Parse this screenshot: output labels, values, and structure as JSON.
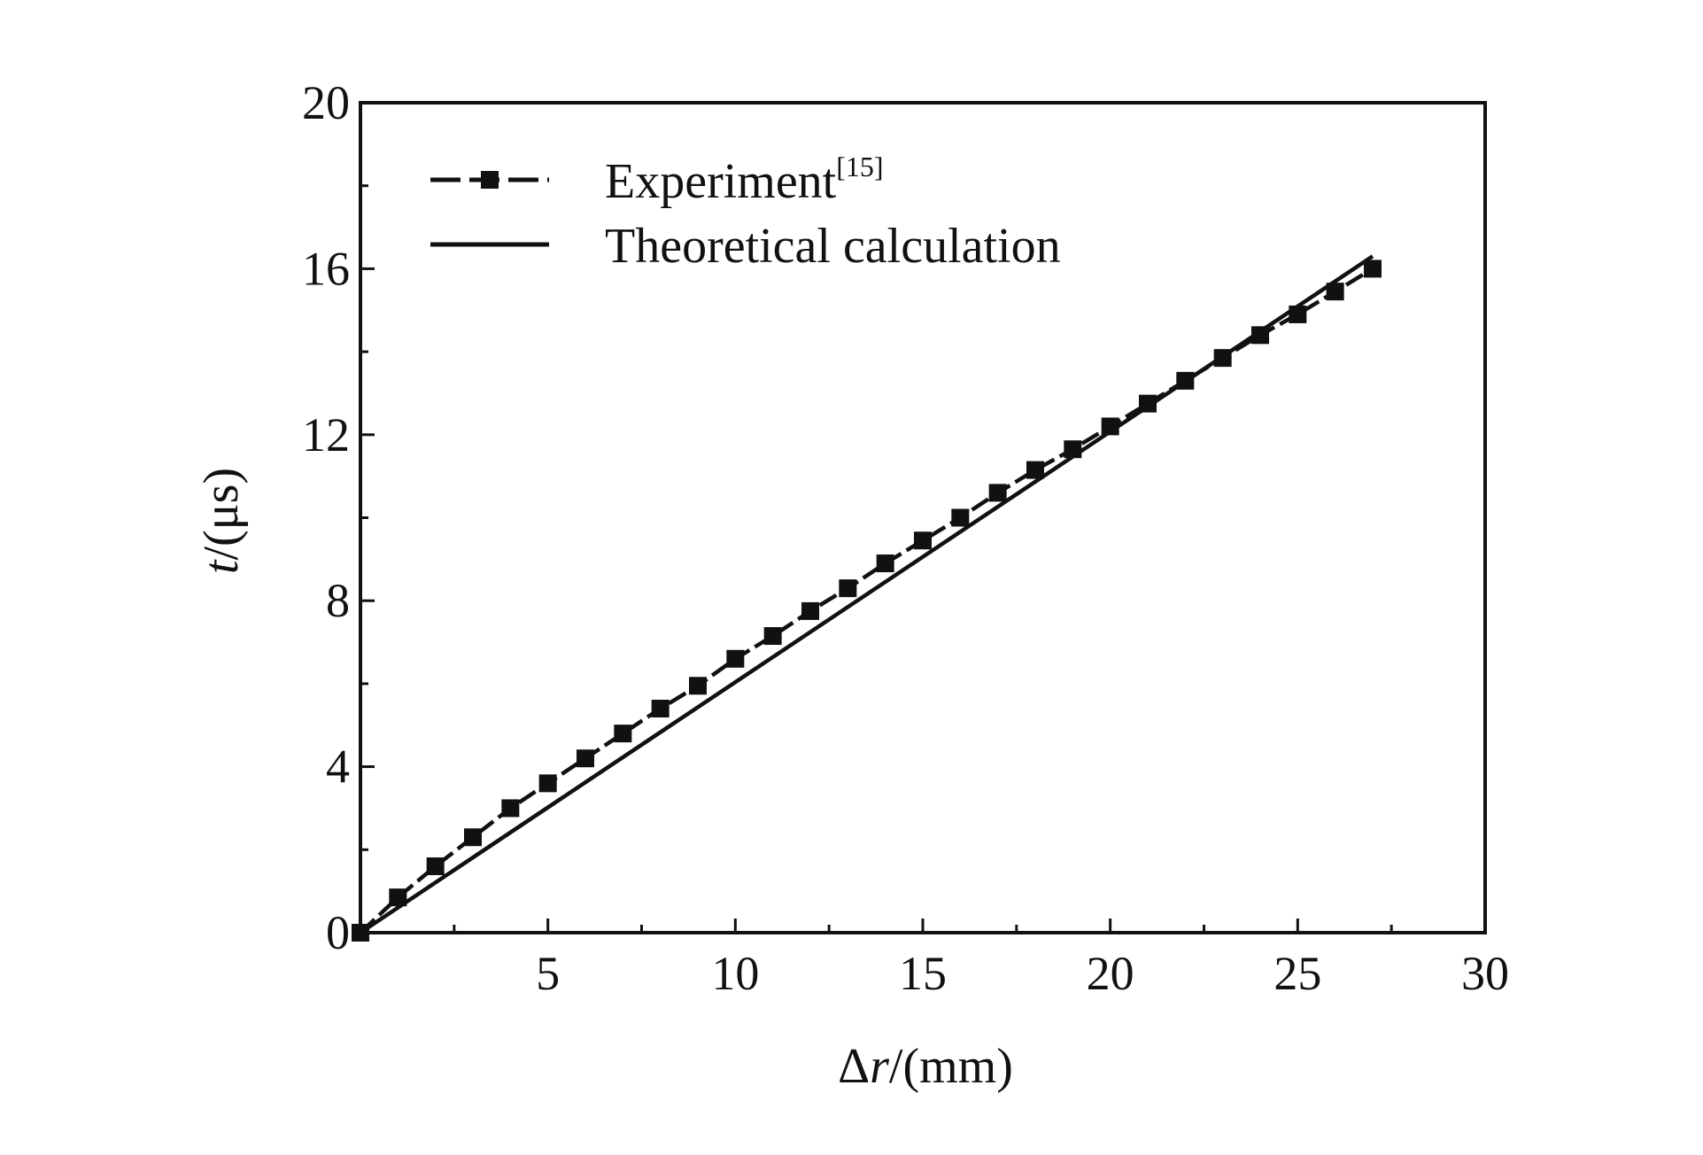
{
  "chart_data": {
    "type": "line",
    "title": "",
    "xlabel": {
      "symbol": "Δ",
      "var": "r",
      "unit": "/(mm)"
    },
    "ylabel": {
      "var": "t",
      "unit": "/(μs)"
    },
    "xlim": [
      0,
      30
    ],
    "ylim": [
      0,
      20
    ],
    "x_ticks": [
      5,
      10,
      15,
      20,
      25,
      30
    ],
    "y_ticks": [
      0,
      4,
      8,
      12,
      16,
      20
    ],
    "grid": false,
    "legend": "top-left",
    "series": [
      {
        "name": "Experiment",
        "name_sup": "[15]",
        "style": "dashed-square-markers",
        "x": [
          0,
          1,
          2,
          3,
          4,
          5,
          6,
          7,
          8,
          9,
          10,
          11,
          12,
          13,
          14,
          15,
          16,
          17,
          18,
          19,
          20,
          21,
          22,
          23,
          24,
          25,
          26,
          27
        ],
        "y": [
          0,
          0.85,
          1.6,
          2.3,
          3.0,
          3.6,
          4.2,
          4.8,
          5.4,
          5.95,
          6.6,
          7.15,
          7.75,
          8.3,
          8.9,
          9.45,
          10.0,
          10.6,
          11.15,
          11.65,
          12.2,
          12.75,
          13.3,
          13.85,
          14.4,
          14.9,
          15.45,
          16.0
        ]
      },
      {
        "name": "Theoretical calculation",
        "style": "solid",
        "x": [
          0,
          27
        ],
        "y": [
          0,
          16.3
        ]
      }
    ]
  },
  "colors": {
    "ink": "#111111",
    "background": "#ffffff"
  }
}
